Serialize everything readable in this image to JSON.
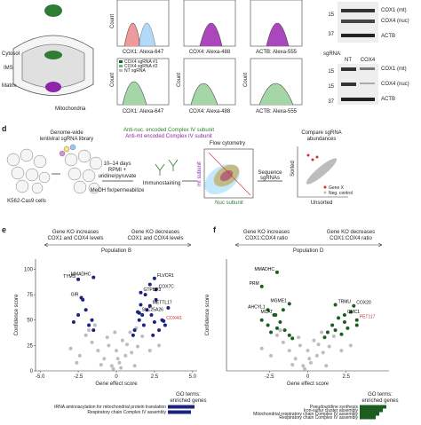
{
  "panel_a": {
    "cytosol": "Cytosol",
    "ims": "IMS",
    "matrix": "Matrix",
    "mito": "Mitochondria"
  },
  "panel_b": {
    "count": "Count",
    "x1": "COX1: Alexa-647",
    "x2": "COX4: Alexa-488",
    "x3": "ACTB: Alexa-555",
    "legend": [
      "COX4 sgRNA #1",
      "COX4 sgRNA #2",
      "NT sgRNA"
    ]
  },
  "panel_c": {
    "band1": "COX1 (mt)",
    "band2": "COX4 (nuc)",
    "band3": "ACTB",
    "m15": "15",
    "m37": "37",
    "sgrna": "sgRNA:",
    "nt": "NT",
    "cox4": "COX4"
  },
  "panel_d": {
    "letter": "d",
    "lib1": "Genome-wide",
    "lib2": "lentiviral sgRNA library",
    "cells": "K562-Cas9 cells",
    "days": "10–14 days",
    "rpmi1": "RPMI +",
    "rpmi2": "uridine/pyruvate",
    "fix": "MeOH fix/permeabilize",
    "anti_nuc": "Anti-nuc. encoded Complex IV subunit",
    "anti_mt": "Anti-mt encoded Complex IV subunit",
    "stain": "Immunostaining",
    "flow": "Flow cytometry",
    "mt_axis": "mt subunit",
    "nuc_axis": "Nuc subunit",
    "seq1": "Sequence",
    "seq2": "sgRNAs",
    "cmp1": "Compare sgRNA",
    "cmp2": "abundances",
    "sorted": "Sorted",
    "unsorted": "Unsorted",
    "genex": "Gene X",
    "neg": "Neg. control"
  },
  "panel_e": {
    "letter": "e",
    "left1": "Gene KO increases",
    "left2": "COX1 and COX4 levels",
    "right1": "Gene KO decreases",
    "right2": "COX1 and COX4 levels",
    "population": "Population B",
    "ylabel": "Confidence score",
    "xlabel": "Gene effect score",
    "xlim": [
      -5.3,
      5.3
    ],
    "ylim": [
      0,
      110
    ],
    "xticks": [
      {
        "value": -5,
        "label": "-5.0"
      },
      {
        "value": -2.5,
        "label": "-2.5"
      },
      0,
      {
        "value": 2.5,
        "label": "2.5"
      },
      {
        "value": 5,
        "label": "5.0"
      }
    ],
    "yticks": [
      0,
      25,
      50,
      75,
      100
    ],
    "hit_color": "#1a237e",
    "gray_color": "#bdbdbd",
    "gray_points": [
      [
        -0.3,
        5
      ],
      [
        0.2,
        8
      ],
      [
        -0.8,
        12
      ],
      [
        0.6,
        15
      ],
      [
        -1.2,
        20
      ],
      [
        1.0,
        18
      ],
      [
        -0.5,
        25
      ],
      [
        0.4,
        30
      ],
      [
        -1.6,
        28
      ],
      [
        1.4,
        24
      ],
      [
        -2.0,
        35
      ],
      [
        0.9,
        38
      ],
      [
        -0.2,
        2
      ],
      [
        0.1,
        12
      ],
      [
        -1.0,
        6
      ],
      [
        1.2,
        5
      ],
      [
        -2.4,
        15
      ],
      [
        2.2,
        20
      ],
      [
        -1.8,
        40
      ],
      [
        1.7,
        34
      ],
      [
        0.0,
        20
      ],
      [
        -0.6,
        33
      ],
      [
        0.7,
        26
      ],
      [
        -3.0,
        22
      ],
      [
        2.8,
        25
      ],
      [
        -1.4,
        45
      ],
      [
        1.3,
        42
      ],
      [
        -0.1,
        38
      ],
      [
        0.3,
        3
      ],
      [
        -2.6,
        8
      ]
    ],
    "hit_points": [
      [
        1.2,
        40
      ],
      [
        1.5,
        50
      ],
      [
        1.8,
        45
      ],
      [
        2.0,
        60
      ],
      [
        2.3,
        55
      ],
      [
        1.6,
        65
      ],
      [
        2.6,
        70
      ],
      [
        1.9,
        75
      ],
      [
        2.2,
        85
      ],
      [
        3.0,
        50
      ],
      [
        2.8,
        40
      ],
      [
        1.4,
        58
      ],
      [
        2.5,
        48
      ],
      [
        3.4,
        62
      ],
      [
        -1.6,
        50
      ],
      [
        -2.0,
        60
      ],
      [
        -1.8,
        45
      ],
      [
        -2.5,
        55
      ],
      [
        -2.2,
        70
      ],
      [
        -1.5,
        40
      ],
      [
        1.1,
        35
      ],
      [
        2.4,
        35
      ],
      [
        3.2,
        45
      ],
      [
        -2.8,
        48
      ],
      [
        1.7,
        55
      ]
    ],
    "genes": [
      {
        "name": "TYMS",
        "x": -2.5,
        "y": 90,
        "color": "#000000"
      },
      {
        "name": "MMADHC",
        "x": -1.5,
        "y": 92,
        "color": "#000000"
      },
      {
        "name": "FLVCR1",
        "x": 2.5,
        "y": 91,
        "color": "#000000"
      },
      {
        "name": "COX7C",
        "x": 2.6,
        "y": 80,
        "color": "#000000"
      },
      {
        "name": "GTPBP3",
        "x": 1.6,
        "y": 77,
        "color": "#000000"
      },
      {
        "name": "METTL17",
        "x": 2.2,
        "y": 64,
        "color": "#000000"
      },
      {
        "name": "SLC25A26",
        "x": 1.5,
        "y": 57,
        "color": "#000000"
      },
      {
        "name": "GIR",
        "x": -2.3,
        "y": 72,
        "color": "#000000"
      },
      {
        "name": "COX4I1",
        "x": 3.1,
        "y": 49,
        "color": "#d32f2f"
      }
    ],
    "go_title1": "GO terms:",
    "go_title2": "enriched genes",
    "go_terms": [
      "tRNA aminoacylation for mitochondrial protein translation",
      "Respiratory chain Complex IV assembly"
    ]
  },
  "panel_f": {
    "letter": "f",
    "left1": "Gene KO increases",
    "left2": "COX1:COX4 ratio",
    "right1": "Gene KO decreases",
    "right2": "COX1:COX4 ratio",
    "population": "Population D",
    "ylabel": "Confidence score",
    "xlabel": "Gene effect score",
    "xlim": [
      -5.3,
      5.3
    ],
    "ylim": [
      0,
      110
    ],
    "xticks": [
      {
        "value": -2.5,
        "label": "-2.5"
      },
      0,
      {
        "value": 2.5,
        "label": "2.5"
      }
    ],
    "hit_color": "#1b5e20",
    "gray_color": "#bdbdbd",
    "gray_points": [
      [
        -0.3,
        5
      ],
      [
        0.2,
        8
      ],
      [
        -0.8,
        12
      ],
      [
        0.6,
        15
      ],
      [
        -1.2,
        20
      ],
      [
        1.0,
        18
      ],
      [
        -0.5,
        25
      ],
      [
        0.4,
        30
      ],
      [
        -1.6,
        28
      ],
      [
        1.4,
        24
      ],
      [
        -2.0,
        35
      ],
      [
        0.9,
        38
      ],
      [
        -0.2,
        2
      ],
      [
        0.1,
        12
      ],
      [
        -1.0,
        6
      ],
      [
        1.2,
        5
      ],
      [
        -2.4,
        15
      ],
      [
        2.2,
        20
      ],
      [
        -1.8,
        40
      ],
      [
        1.7,
        34
      ],
      [
        0.0,
        20
      ],
      [
        -0.6,
        33
      ],
      [
        0.7,
        26
      ],
      [
        -3.0,
        22
      ],
      [
        2.8,
        25
      ]
    ],
    "hit_points": [
      [
        -1.5,
        40
      ],
      [
        -1.8,
        48
      ],
      [
        -2.2,
        55
      ],
      [
        -2.6,
        45
      ],
      [
        -1.2,
        35
      ],
      [
        -2.0,
        42
      ],
      [
        -3.0,
        50
      ],
      [
        -1.6,
        60
      ],
      [
        -2.4,
        38
      ],
      [
        1.3,
        38
      ],
      [
        1.6,
        45
      ],
      [
        2.0,
        52
      ],
      [
        2.4,
        48
      ],
      [
        2.8,
        58
      ],
      [
        1.8,
        40
      ],
      [
        3.2,
        45
      ],
      [
        2.2,
        36
      ],
      [
        1.1,
        33
      ],
      [
        -1.0,
        32
      ],
      [
        2.6,
        42
      ]
    ],
    "genes": [
      {
        "name": "MMADHC",
        "x": -2.0,
        "y": 97,
        "color": "#000000"
      },
      {
        "name": "PRM",
        "x": -3.0,
        "y": 83,
        "color": "#000000"
      },
      {
        "name": "AHCYL1",
        "x": -2.6,
        "y": 60,
        "color": "#000000"
      },
      {
        "name": "MGME1",
        "x": -1.2,
        "y": 66,
        "color": "#000000"
      },
      {
        "name": "MCAT",
        "x": -2.1,
        "y": 55,
        "color": "#000000"
      },
      {
        "name": "TRMU",
        "x": 1.8,
        "y": 65,
        "color": "#000000"
      },
      {
        "name": "COX20",
        "x": 3.0,
        "y": 64,
        "color": "#000000"
      },
      {
        "name": "CMC1",
        "x": 2.4,
        "y": 55,
        "color": "#000000"
      },
      {
        "name": "PET117",
        "x": 3.2,
        "y": 50,
        "color": "#d32f2f"
      }
    ],
    "go_title1": "GO terms:",
    "go_title2": "enriched genes",
    "go_terms": [
      "Pseudouridine synthesis",
      "Iron-sulfur cluster assembly",
      "Mitochondrial respiratory chain Complex IV assembly",
      "Respiratory chain Complex IV assembly"
    ]
  }
}
